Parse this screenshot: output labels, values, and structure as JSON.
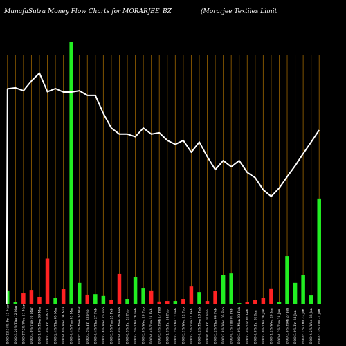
{
  "chart_data": {
    "type": "bar",
    "title": "MunafaSutra  Money Flow  Charts for MORARJEE_BZ",
    "subtitle": "(Morarjee     Textiles Limit",
    "colors": {
      "background": "#000000",
      "grid": "#8b5a00",
      "positive": "#22ee22",
      "negative": "#ff2222",
      "line": "#ffffff"
    },
    "ylim": [
      0,
      100
    ],
    "dates": [
      "Fri 13 Mar",
      "Thu 12 Mar",
      "Wed 11 Mar",
      "Tue 10 Mar",
      "Mon 09 Mar",
      "Fri 06 Mar",
      "Thu 05 Mar",
      "Wed 04 Mar",
      "Tue 03 Mar",
      "Mon 02 Mar",
      "Fri 28 Feb",
      "Thu 27 Feb",
      "Wed 26 Feb",
      "Tue 25 Feb",
      "Mon 24 Feb",
      "Fri 21 Feb",
      "Thu 20 Feb",
      "Wed 19 Feb",
      "Tue 18 Feb",
      "Mon 17 Feb",
      "Fri 14 Feb",
      "Thu 13 Feb",
      "Wed 12 Feb",
      "Tue 11 Feb",
      "Mon 10 Feb",
      "Fri 07 Feb",
      "Thu 06 Feb",
      "Wed 05 Feb",
      "Tue 04 Feb",
      "Mon 03 Feb",
      "Sat 01 Feb",
      "Fri 31 Jan",
      "Thu 30 Jan",
      "Wed 29 Jan",
      "Tue 28 Jan",
      "Mon 27 Jan",
      "Fri 24 Jan",
      "Thu 23 Jan",
      "Wed 22 Jan",
      "Tue 21 Jan"
    ],
    "x_tick_labels": [
      "EOD 13.34%",
      "EOD 3.20%",
      "EOD 17.2%",
      "EOD 3.0%",
      "EOD 1.0%",
      "EOD 7.4%",
      "EOD 2.4%",
      "EOD 4.0%",
      "EOD 4.4%",
      "EOD 5.1%",
      "EOD 3.5%",
      "EOD 4.4%",
      "EOD 2.6%",
      "EOD 3.5%",
      "EOD 4.4%",
      "EOD 6.5%",
      "EOD 2.5%",
      "EOD 3.0%",
      "EOD 4.4%",
      "EOD 5.4%",
      "EOD 1.9%",
      "EOD 3.1%",
      "EOD 3.1%",
      "EOD 2.5%",
      "EOD 4.2%",
      "EOD 6.0%",
      "EOD 3.2%",
      "EOD 3.8%",
      "EOD 4.1%",
      "EOD 3.0%",
      "EOD 2.4%",
      "EOD 4.0%",
      "EOD 3.0%",
      "EOD 1.2%",
      "EOD 4.2%",
      "EOD 3.8%",
      "EOD 3.0%",
      "EOD 5.1%",
      "EOD 4.2%",
      "EOD 3.3%"
    ],
    "bars": [
      {
        "value": 5.3,
        "direction": "up"
      },
      {
        "value": 0.8,
        "direction": "up"
      },
      {
        "value": 4.2,
        "direction": "down"
      },
      {
        "value": 5.5,
        "direction": "down"
      },
      {
        "value": 2.9,
        "direction": "down"
      },
      {
        "value": 17.5,
        "direction": "down"
      },
      {
        "value": 2.6,
        "direction": "up"
      },
      {
        "value": 5.8,
        "direction": "down"
      },
      {
        "value": 100,
        "direction": "up"
      },
      {
        "value": 8.2,
        "direction": "up"
      },
      {
        "value": 3.7,
        "direction": "down"
      },
      {
        "value": 3.9,
        "direction": "up"
      },
      {
        "value": 3.2,
        "direction": "up"
      },
      {
        "value": 1.8,
        "direction": "down"
      },
      {
        "value": 11.6,
        "direction": "down"
      },
      {
        "value": 2.1,
        "direction": "up"
      },
      {
        "value": 10.5,
        "direction": "up"
      },
      {
        "value": 6.3,
        "direction": "up"
      },
      {
        "value": 5.3,
        "direction": "down"
      },
      {
        "value": 1.1,
        "direction": "down"
      },
      {
        "value": 1.3,
        "direction": "down"
      },
      {
        "value": 1.3,
        "direction": "up"
      },
      {
        "value": 2.1,
        "direction": "down"
      },
      {
        "value": 6.8,
        "direction": "down"
      },
      {
        "value": 4.7,
        "direction": "up"
      },
      {
        "value": 1.3,
        "direction": "down"
      },
      {
        "value": 5.0,
        "direction": "down"
      },
      {
        "value": 11.3,
        "direction": "up"
      },
      {
        "value": 11.8,
        "direction": "up"
      },
      {
        "value": 0.5,
        "direction": "up"
      },
      {
        "value": 0.8,
        "direction": "down"
      },
      {
        "value": 1.6,
        "direction": "down"
      },
      {
        "value": 2.4,
        "direction": "down"
      },
      {
        "value": 6.1,
        "direction": "down"
      },
      {
        "value": 0.9,
        "direction": "up"
      },
      {
        "value": 18.4,
        "direction": "up"
      },
      {
        "value": 8.2,
        "direction": "up"
      },
      {
        "value": 11.3,
        "direction": "up"
      },
      {
        "value": 3.4,
        "direction": "up"
      },
      {
        "value": 40.3,
        "direction": "up"
      }
    ],
    "flow_line": [
      82,
      82.4,
      81.3,
      85,
      88,
      80.9,
      82.1,
      80.8,
      80.8,
      81.3,
      79.5,
      79.5,
      72.6,
      67.1,
      64.8,
      64.8,
      63.8,
      67.1,
      64.8,
      65.3,
      62.4,
      60.9,
      62.4,
      57.9,
      61.8,
      56.2,
      51.3,
      54.7,
      52.4,
      54.7,
      50.2,
      48.2,
      43.6,
      41.1,
      44.3,
      48.6,
      52.8,
      57.4,
      61.8,
      66.3
    ],
    "line_start": 0
  }
}
